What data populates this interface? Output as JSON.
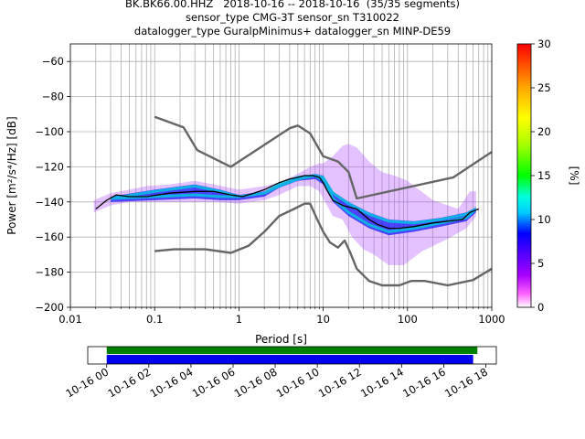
{
  "header": {
    "title_line1": "BK.BK66.00.HHZ   2018-10-16 -- 2018-10-16  (35/35 segments)",
    "title_line2": "sensor_type CMG-3T sensor_sn T310022",
    "title_line3": "datalogger_type GuralpMinimus+ datalogger_sn MINP-DE59"
  },
  "colors": {
    "model_curve": "#666666",
    "mode_curve": "#000000",
    "timeline_green": "#008000",
    "timeline_blue": "#0000ee"
  },
  "chart_data": {
    "type": "heatmap",
    "title": "BK.BK66.00.HHZ   2018-10-16 -- 2018-10-16  (35/35 segments)",
    "xlabel": "Period [s]",
    "ylabel": "Power [m²/s⁴/Hz] [dB]",
    "x_scale": "log",
    "xlim": [
      0.01,
      1000
    ],
    "ylim": [
      -200,
      -50
    ],
    "x_ticks": [
      0.01,
      0.1,
      1,
      10,
      100,
      1000
    ],
    "x_tick_labels": [
      "0.01",
      "0.1",
      "1",
      "10",
      "100",
      "1000"
    ],
    "y_ticks": [
      -200,
      -180,
      -160,
      -140,
      -120,
      -100,
      -80,
      -60
    ],
    "y_tick_labels": [
      "-200",
      "-180",
      "-160",
      "-140",
      "-120",
      "-100",
      "-80",
      "-60"
    ],
    "grid": true,
    "colorbar": {
      "label": "[%]",
      "range": [
        0,
        30
      ],
      "ticks": [
        0,
        5,
        10,
        15,
        20,
        25,
        30
      ],
      "tick_labels": [
        "0",
        "5",
        "10",
        "15",
        "20",
        "25",
        "30"
      ]
    },
    "series": [
      {
        "name": "",
        "role": "noise_model_high",
        "points": [
          [
            0.1,
            -91.5
          ],
          [
            0.22,
            -97.5
          ],
          [
            0.32,
            -110.5
          ],
          [
            0.8,
            -120
          ],
          [
            4,
            -98
          ],
          [
            5,
            -96.5
          ],
          [
            7,
            -101
          ],
          [
            10,
            -114
          ],
          [
            15,
            -117
          ],
          [
            20,
            -123
          ],
          [
            25,
            -138
          ],
          [
            350,
            -126
          ],
          [
            1000,
            -111.5
          ]
        ]
      },
      {
        "name": "",
        "role": "noise_model_low",
        "points": [
          [
            0.1,
            -168
          ],
          [
            0.17,
            -167
          ],
          [
            0.4,
            -167
          ],
          [
            0.8,
            -169
          ],
          [
            1.3,
            -165
          ],
          [
            2,
            -157
          ],
          [
            3,
            -148
          ],
          [
            4.5,
            -144
          ],
          [
            6,
            -141
          ],
          [
            7,
            -141
          ],
          [
            8.5,
            -150
          ],
          [
            10,
            -157
          ],
          [
            12,
            -163
          ],
          [
            15,
            -166
          ],
          [
            18,
            -162
          ],
          [
            21,
            -169
          ],
          [
            25,
            -178
          ],
          [
            35,
            -185
          ],
          [
            50,
            -187.5
          ],
          [
            80,
            -187.5
          ],
          [
            110,
            -185
          ],
          [
            160,
            -185
          ],
          [
            300,
            -187.5
          ],
          [
            600,
            -184.5
          ],
          [
            1000,
            -178
          ]
        ]
      },
      {
        "name": "",
        "role": "mode",
        "points": [
          [
            0.02,
            -144
          ],
          [
            0.027,
            -139
          ],
          [
            0.035,
            -136
          ],
          [
            0.05,
            -137
          ],
          [
            0.08,
            -137
          ],
          [
            0.15,
            -135
          ],
          [
            0.3,
            -134
          ],
          [
            0.5,
            -134
          ],
          [
            0.8,
            -136
          ],
          [
            1.1,
            -137
          ],
          [
            1.5,
            -135
          ],
          [
            2,
            -133
          ],
          [
            3,
            -129
          ],
          [
            4,
            -127
          ],
          [
            5,
            -126
          ],
          [
            6,
            -125
          ],
          [
            7.5,
            -125
          ],
          [
            9,
            -126
          ],
          [
            10,
            -129
          ],
          [
            11,
            -133
          ],
          [
            13,
            -139
          ],
          [
            17,
            -142
          ],
          [
            25,
            -144
          ],
          [
            35,
            -150
          ],
          [
            45,
            -153
          ],
          [
            60,
            -155
          ],
          [
            80,
            -155
          ],
          [
            120,
            -154
          ],
          [
            200,
            -152
          ],
          [
            300,
            -151
          ],
          [
            450,
            -150
          ],
          [
            550,
            -146
          ],
          [
            700,
            -144
          ]
        ]
      }
    ],
    "density_band": {
      "note": "PSD probability density histogram; color = percent of segments",
      "upper": [
        [
          0.019,
          -139
        ],
        [
          0.03,
          -135
        ],
        [
          0.05,
          -133
        ],
        [
          0.08,
          -131
        ],
        [
          0.15,
          -130
        ],
        [
          0.3,
          -128
        ],
        [
          0.5,
          -130
        ],
        [
          1,
          -133
        ],
        [
          2,
          -131
        ],
        [
          3,
          -129
        ],
        [
          5,
          -124
        ],
        [
          7,
          -120
        ],
        [
          9,
          -118
        ],
        [
          10,
          -118
        ],
        [
          13,
          -114
        ],
        [
          17,
          -108
        ],
        [
          20,
          -107
        ],
        [
          25,
          -109
        ],
        [
          35,
          -117
        ],
        [
          50,
          -123
        ],
        [
          70,
          -125
        ],
        [
          100,
          -128
        ],
        [
          200,
          -139
        ],
        [
          400,
          -144
        ],
        [
          550,
          -134
        ],
        [
          650,
          -134
        ]
      ],
      "lower": [
        [
          0.019,
          -146
        ],
        [
          0.03,
          -142
        ],
        [
          0.05,
          -140
        ],
        [
          0.08,
          -140
        ],
        [
          0.15,
          -140
        ],
        [
          0.3,
          -140
        ],
        [
          0.5,
          -140
        ],
        [
          1,
          -141
        ],
        [
          2,
          -139
        ],
        [
          3,
          -136
        ],
        [
          5,
          -131
        ],
        [
          7,
          -131
        ],
        [
          9,
          -134
        ],
        [
          10,
          -138
        ],
        [
          13,
          -148
        ],
        [
          17,
          -150
        ],
        [
          22,
          -160
        ],
        [
          30,
          -167
        ],
        [
          40,
          -170
        ],
        [
          60,
          -176
        ],
        [
          90,
          -176
        ],
        [
          150,
          -168
        ],
        [
          300,
          -161
        ],
        [
          500,
          -155
        ],
        [
          650,
          -148
        ]
      ],
      "core_upper": [
        [
          0.03,
          -137
        ],
        [
          0.1,
          -133
        ],
        [
          0.3,
          -130
        ],
        [
          0.6,
          -133
        ],
        [
          1,
          -136
        ],
        [
          2,
          -134
        ],
        [
          3,
          -130
        ],
        [
          5,
          -126
        ],
        [
          8,
          -124
        ],
        [
          10,
          -125
        ],
        [
          13,
          -134
        ],
        [
          20,
          -140
        ],
        [
          35,
          -146
        ],
        [
          60,
          -150
        ],
        [
          120,
          -151
        ],
        [
          250,
          -149
        ],
        [
          500,
          -146
        ],
        [
          650,
          -143
        ]
      ],
      "core_lower": [
        [
          0.03,
          -140
        ],
        [
          0.1,
          -139
        ],
        [
          0.3,
          -138
        ],
        [
          0.6,
          -139
        ],
        [
          1,
          -139
        ],
        [
          2,
          -137
        ],
        [
          3,
          -132
        ],
        [
          5,
          -128
        ],
        [
          8,
          -127
        ],
        [
          10,
          -130
        ],
        [
          13,
          -140
        ],
        [
          20,
          -148
        ],
        [
          35,
          -155
        ],
        [
          60,
          -159
        ],
        [
          120,
          -157
        ],
        [
          250,
          -154
        ],
        [
          500,
          -151
        ],
        [
          650,
          -146
        ]
      ]
    },
    "timeline": {
      "ticks": [
        "10-16 00",
        "10-16 02",
        "10-16 04",
        "10-16 06",
        "10-16 08",
        "10-16 10",
        "10-16 12",
        "10-16 14",
        "10-16 16",
        "10-16 18"
      ],
      "tick_hours": [
        0,
        2,
        4,
        6,
        8,
        10,
        12,
        14,
        16,
        18
      ],
      "xlim_hours": [
        -0.9,
        18.5
      ],
      "data_coverage_hours": [
        0,
        17.6
      ],
      "processed_segments_hours": [
        0,
        17.4
      ]
    }
  }
}
